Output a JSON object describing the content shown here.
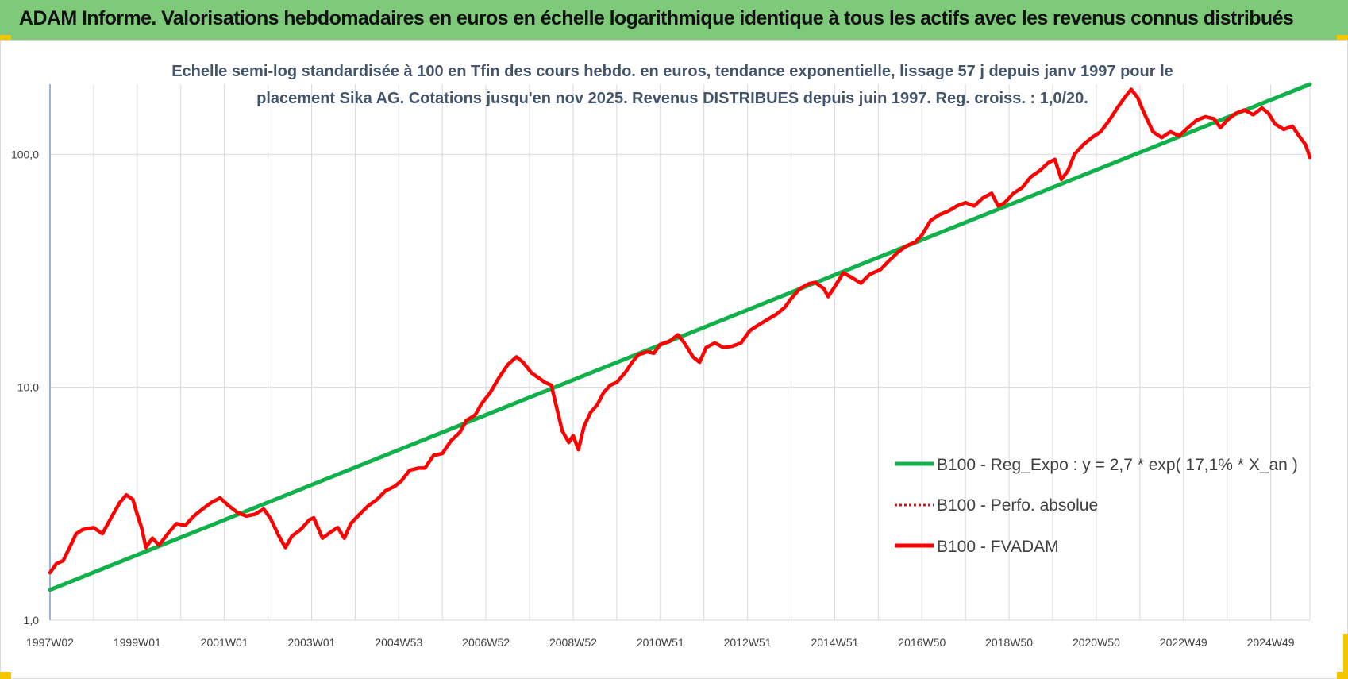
{
  "header": {
    "title": "ADAM Informe. Valorisations hebdomadaires en euros en échelle logarithmique identique à tous les actifs avec les revenus connus distribués"
  },
  "chart_data": {
    "type": "line",
    "title_lines": [
      "Echelle semi-log standardisée à 100 en Tfin des cours hebdo. en euros, tendance exponentielle, lissage 57 j depuis janv 1997 pour le",
      "placement Sika AG. Cotations jusqu'en nov 2025. Revenus DISTRIBUES depuis juin 1997. Reg. croiss. : 1,0/20."
    ],
    "yscale": "log",
    "ylim": [
      1,
      200
    ],
    "y_ticks": [
      {
        "value": 1,
        "label": "1,0"
      },
      {
        "value": 10,
        "label": "10,0"
      },
      {
        "value": 100,
        "label": "100,0"
      }
    ],
    "x_range": [
      1997.0,
      2025.9
    ],
    "x_ticks": [
      {
        "x": 1997.0,
        "label": "1997W02"
      },
      {
        "x": 1999.0,
        "label": "1999W01"
      },
      {
        "x": 2001.0,
        "label": "2001W01"
      },
      {
        "x": 2003.0,
        "label": "2003W01"
      },
      {
        "x": 2005.0,
        "label": "2004W53"
      },
      {
        "x": 2007.0,
        "label": "2006W52"
      },
      {
        "x": 2009.0,
        "label": "2008W52"
      },
      {
        "x": 2011.0,
        "label": "2010W51"
      },
      {
        "x": 2013.0,
        "label": "2012W51"
      },
      {
        "x": 2015.0,
        "label": "2014W51"
      },
      {
        "x": 2017.0,
        "label": "2016W50"
      },
      {
        "x": 2019.0,
        "label": "2018W50"
      },
      {
        "x": 2021.0,
        "label": "2020W50"
      },
      {
        "x": 2023.0,
        "label": "2022W49"
      },
      {
        "x": 2025.0,
        "label": "2024W49"
      }
    ],
    "grid": true,
    "legend_position": "bottom-right",
    "colors": {
      "trend": "#10b04a",
      "absolute": "#ff0000",
      "fvadam": "#ff0000",
      "grid": "#d9d9d9"
    },
    "series": [
      {
        "name": "B100 - Reg_Expo : y = 2,7 * exp( 17,1% *  X_an )",
        "style": "solid",
        "points": [
          [
            1997.0,
            1.35
          ],
          [
            2025.9,
            200
          ]
        ]
      },
      {
        "name": "B100 - Perfo. absolue",
        "style": "dotted",
        "points": []
      },
      {
        "name": "B100 - FVADAM",
        "style": "solid",
        "points": [
          [
            1997.0,
            1.6
          ],
          [
            1997.15,
            1.75
          ],
          [
            1997.3,
            1.8
          ],
          [
            1997.45,
            2.05
          ],
          [
            1997.6,
            2.35
          ],
          [
            1997.75,
            2.45
          ],
          [
            1998.0,
            2.5
          ],
          [
            1998.2,
            2.35
          ],
          [
            1998.4,
            2.75
          ],
          [
            1998.6,
            3.2
          ],
          [
            1998.75,
            3.45
          ],
          [
            1998.9,
            3.3
          ],
          [
            1999.0,
            2.85
          ],
          [
            1999.1,
            2.5
          ],
          [
            1999.2,
            2.05
          ],
          [
            1999.35,
            2.25
          ],
          [
            1999.5,
            2.1
          ],
          [
            1999.7,
            2.35
          ],
          [
            1999.9,
            2.6
          ],
          [
            2000.1,
            2.55
          ],
          [
            2000.3,
            2.8
          ],
          [
            2000.5,
            3.0
          ],
          [
            2000.7,
            3.2
          ],
          [
            2000.9,
            3.35
          ],
          [
            2001.1,
            3.1
          ],
          [
            2001.3,
            2.9
          ],
          [
            2001.5,
            2.8
          ],
          [
            2001.7,
            2.85
          ],
          [
            2001.9,
            3.0
          ],
          [
            2002.05,
            2.75
          ],
          [
            2002.25,
            2.3
          ],
          [
            2002.4,
            2.05
          ],
          [
            2002.55,
            2.3
          ],
          [
            2002.75,
            2.45
          ],
          [
            2002.95,
            2.7
          ],
          [
            2003.05,
            2.75
          ],
          [
            2003.25,
            2.25
          ],
          [
            2003.45,
            2.4
          ],
          [
            2003.6,
            2.5
          ],
          [
            2003.75,
            2.25
          ],
          [
            2003.9,
            2.6
          ],
          [
            2004.1,
            2.85
          ],
          [
            2004.3,
            3.1
          ],
          [
            2004.5,
            3.3
          ],
          [
            2004.7,
            3.6
          ],
          [
            2004.9,
            3.75
          ],
          [
            2005.05,
            3.95
          ],
          [
            2005.25,
            4.4
          ],
          [
            2005.45,
            4.5
          ],
          [
            2005.6,
            4.5
          ],
          [
            2005.8,
            5.1
          ],
          [
            2006.0,
            5.2
          ],
          [
            2006.2,
            5.9
          ],
          [
            2006.4,
            6.4
          ],
          [
            2006.55,
            7.2
          ],
          [
            2006.75,
            7.6
          ],
          [
            2006.9,
            8.5
          ],
          [
            2007.1,
            9.5
          ],
          [
            2007.3,
            11.0
          ],
          [
            2007.5,
            12.5
          ],
          [
            2007.7,
            13.5
          ],
          [
            2007.85,
            12.8
          ],
          [
            2008.05,
            11.5
          ],
          [
            2008.2,
            11.0
          ],
          [
            2008.35,
            10.5
          ],
          [
            2008.5,
            10.2
          ],
          [
            2008.6,
            8.5
          ],
          [
            2008.75,
            6.5
          ],
          [
            2008.9,
            5.8
          ],
          [
            2009.0,
            6.2
          ],
          [
            2009.12,
            5.4
          ],
          [
            2009.25,
            6.8
          ],
          [
            2009.4,
            7.8
          ],
          [
            2009.55,
            8.4
          ],
          [
            2009.7,
            9.5
          ],
          [
            2009.85,
            10.2
          ],
          [
            2010.0,
            10.5
          ],
          [
            2010.2,
            11.6
          ],
          [
            2010.35,
            12.8
          ],
          [
            2010.5,
            13.8
          ],
          [
            2010.7,
            14.2
          ],
          [
            2010.85,
            14.0
          ],
          [
            2011.0,
            15.3
          ],
          [
            2011.2,
            15.7
          ],
          [
            2011.4,
            16.8
          ],
          [
            2011.55,
            15.5
          ],
          [
            2011.75,
            13.5
          ],
          [
            2011.9,
            12.8
          ],
          [
            2012.05,
            14.8
          ],
          [
            2012.25,
            15.5
          ],
          [
            2012.45,
            14.8
          ],
          [
            2012.65,
            15.0
          ],
          [
            2012.85,
            15.5
          ],
          [
            2013.05,
            17.5
          ],
          [
            2013.25,
            18.5
          ],
          [
            2013.45,
            19.5
          ],
          [
            2013.65,
            20.5
          ],
          [
            2013.85,
            22.0
          ],
          [
            2014.0,
            24.0
          ],
          [
            2014.2,
            26.5
          ],
          [
            2014.4,
            27.8
          ],
          [
            2014.55,
            28.2
          ],
          [
            2014.75,
            26.5
          ],
          [
            2014.85,
            24.5
          ],
          [
            2015.0,
            27.0
          ],
          [
            2015.2,
            31.0
          ],
          [
            2015.4,
            29.5
          ],
          [
            2015.6,
            28.0
          ],
          [
            2015.8,
            30.5
          ],
          [
            2016.05,
            32.0
          ],
          [
            2016.25,
            35.0
          ],
          [
            2016.45,
            38.0
          ],
          [
            2016.65,
            40.5
          ],
          [
            2016.85,
            42.0
          ],
          [
            2017.0,
            45.0
          ],
          [
            2017.2,
            52.0
          ],
          [
            2017.4,
            55.0
          ],
          [
            2017.6,
            57.0
          ],
          [
            2017.8,
            60.0
          ],
          [
            2018.0,
            62.0
          ],
          [
            2018.2,
            60.0
          ],
          [
            2018.4,
            65.0
          ],
          [
            2018.6,
            68.0
          ],
          [
            2018.75,
            60.0
          ],
          [
            2018.9,
            62.0
          ],
          [
            2019.1,
            68.0
          ],
          [
            2019.3,
            72.0
          ],
          [
            2019.5,
            80.0
          ],
          [
            2019.7,
            85.0
          ],
          [
            2019.9,
            92.0
          ],
          [
            2020.05,
            95.0
          ],
          [
            2020.2,
            78.0
          ],
          [
            2020.35,
            85.0
          ],
          [
            2020.5,
            100.0
          ],
          [
            2020.7,
            110.0
          ],
          [
            2020.9,
            118.0
          ],
          [
            2021.1,
            125.0
          ],
          [
            2021.3,
            140.0
          ],
          [
            2021.5,
            160.0
          ],
          [
            2021.65,
            175.0
          ],
          [
            2021.8,
            190.0
          ],
          [
            2021.95,
            175.0
          ],
          [
            2022.1,
            150.0
          ],
          [
            2022.3,
            125.0
          ],
          [
            2022.5,
            118.0
          ],
          [
            2022.7,
            125.0
          ],
          [
            2022.9,
            120.0
          ],
          [
            2023.1,
            130.0
          ],
          [
            2023.3,
            140.0
          ],
          [
            2023.5,
            145.0
          ],
          [
            2023.7,
            142.0
          ],
          [
            2023.85,
            130.0
          ],
          [
            2024.0,
            140.0
          ],
          [
            2024.2,
            150.0
          ],
          [
            2024.4,
            155.0
          ],
          [
            2024.6,
            148.0
          ],
          [
            2024.8,
            158.0
          ],
          [
            2024.95,
            150.0
          ],
          [
            2025.1,
            135.0
          ],
          [
            2025.3,
            128.0
          ],
          [
            2025.5,
            132.0
          ],
          [
            2025.65,
            120.0
          ],
          [
            2025.8,
            110.0
          ],
          [
            2025.9,
            97.0
          ]
        ]
      }
    ]
  }
}
